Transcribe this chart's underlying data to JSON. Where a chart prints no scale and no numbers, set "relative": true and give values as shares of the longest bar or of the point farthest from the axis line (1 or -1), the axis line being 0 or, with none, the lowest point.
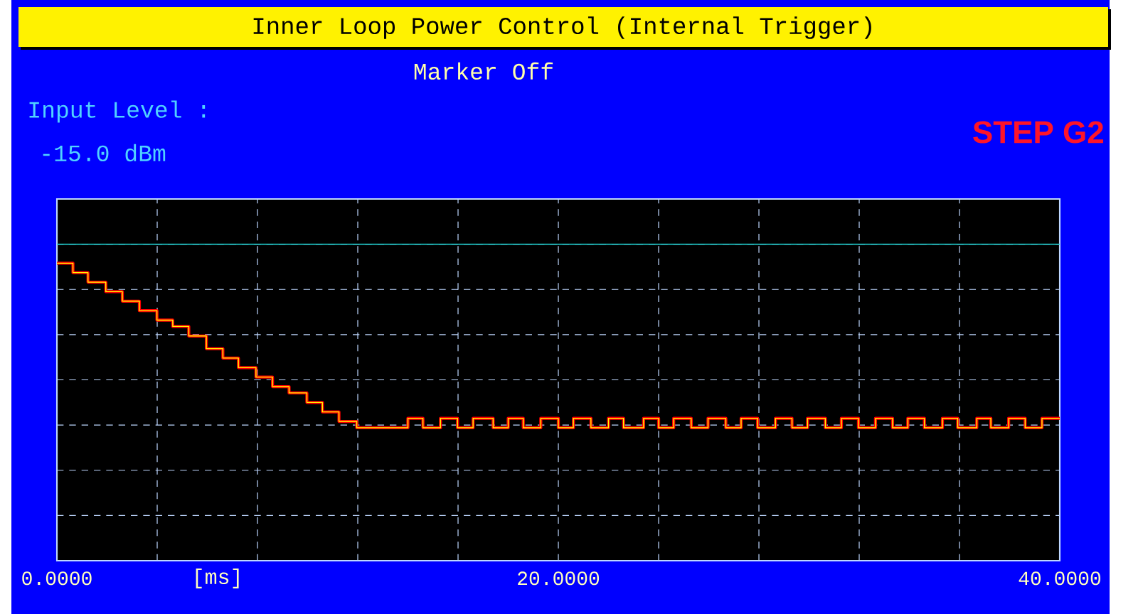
{
  "chart_data": {
    "type": "step",
    "title": "Inner Loop Power Control (Internal Trigger)",
    "subtitle": "Marker Off",
    "xlabel": "[ms]",
    "annotations": [
      "Input Level :",
      "-15.0 dBm",
      "STEP G2"
    ],
    "relative": true,
    "grid": true,
    "xlim": [
      0,
      40
    ],
    "xticks": [
      {
        "value": 0,
        "label": "0.0000"
      },
      {
        "value": 4,
        "label": null
      },
      {
        "value": 8,
        "label": null
      },
      {
        "value": 12,
        "label": null
      },
      {
        "value": 16,
        "label": null
      },
      {
        "value": 20,
        "label": "20.0000"
      },
      {
        "value": 24,
        "label": null
      },
      {
        "value": 28,
        "label": null
      },
      {
        "value": 32,
        "label": null
      },
      {
        "value": 36,
        "label": null
      },
      {
        "value": 40,
        "label": "40.0000"
      }
    ],
    "series": [
      {
        "color": "#ff0000",
        "x": [
          0,
          0.64,
          1.24,
          1.95,
          2.61,
          3.29,
          3.99,
          4.62,
          5.26,
          5.96,
          6.62,
          7.24,
          7.94,
          8.6,
          9.26,
          9.97,
          10.59,
          11.25,
          11.96,
          14.0,
          14.6,
          15.3,
          15.98,
          16.6,
          17.4,
          18.0,
          18.6,
          19.3,
          20.0,
          20.6,
          21.3,
          22.0,
          22.6,
          23.4,
          24.0,
          24.6,
          25.3,
          25.97,
          26.68,
          27.29,
          27.95,
          28.66,
          29.32,
          29.94,
          30.65,
          31.29,
          31.97,
          32.65,
          33.33,
          33.94,
          34.6,
          35.32,
          35.93,
          36.69,
          37.25,
          37.96,
          38.62,
          39.29,
          40
        ],
        "values": [
          0.94,
          0.91,
          0.88,
          0.85,
          0.82,
          0.79,
          0.76,
          0.74,
          0.71,
          0.67,
          0.64,
          0.61,
          0.58,
          0.55,
          0.53,
          0.5,
          0.47,
          0.44,
          0.42,
          0.45,
          0.42,
          0.45,
          0.42,
          0.45,
          0.42,
          0.45,
          0.42,
          0.45,
          0.42,
          0.45,
          0.42,
          0.45,
          0.42,
          0.45,
          0.42,
          0.45,
          0.42,
          0.45,
          0.42,
          0.45,
          0.42,
          0.45,
          0.42,
          0.45,
          0.42,
          0.45,
          0.42,
          0.45,
          0.42,
          0.45,
          0.42,
          0.45,
          0.42,
          0.45,
          0.42,
          0.45,
          0.42,
          0.45,
          0.45
        ]
      },
      {
        "color": "#ffff00",
        "x": [
          0,
          0.64,
          1.24,
          1.95,
          2.61,
          3.29,
          3.99,
          4.62,
          5.26,
          5.96,
          6.62,
          7.24,
          7.94,
          8.6,
          9.26,
          9.97,
          10.59,
          11.25,
          11.96,
          14.0,
          14.6,
          15.3,
          15.98,
          16.6,
          17.4,
          18.0,
          18.6,
          19.3,
          20.0,
          20.6,
          21.3,
          22.0,
          22.6,
          23.4,
          24.0,
          24.6,
          25.3,
          25.97,
          26.68,
          27.29,
          27.95,
          28.66,
          29.32,
          29.94,
          30.65,
          31.29,
          31.97,
          32.65,
          33.33,
          33.94,
          34.6,
          35.32,
          35.93,
          36.69,
          37.25,
          37.96,
          38.62,
          39.29,
          40
        ],
        "values": [
          0.94,
          0.91,
          0.88,
          0.85,
          0.82,
          0.79,
          0.76,
          0.74,
          0.71,
          0.67,
          0.64,
          0.61,
          0.58,
          0.55,
          0.53,
          0.5,
          0.47,
          0.44,
          0.42,
          0.45,
          0.42,
          0.45,
          0.42,
          0.45,
          0.42,
          0.45,
          0.42,
          0.45,
          0.42,
          0.45,
          0.42,
          0.45,
          0.42,
          0.45,
          0.42,
          0.45,
          0.42,
          0.45,
          0.42,
          0.45,
          0.42,
          0.45,
          0.42,
          0.45,
          0.42,
          0.45,
          0.42,
          0.45,
          0.42,
          0.45,
          0.42,
          0.45,
          0.42,
          0.45,
          0.42,
          0.45,
          0.42,
          0.45,
          0.45
        ]
      },
      {
        "type": "line",
        "color": "#20d0d0",
        "x": [
          0,
          40
        ],
        "values": [
          1,
          1
        ]
      }
    ]
  }
}
